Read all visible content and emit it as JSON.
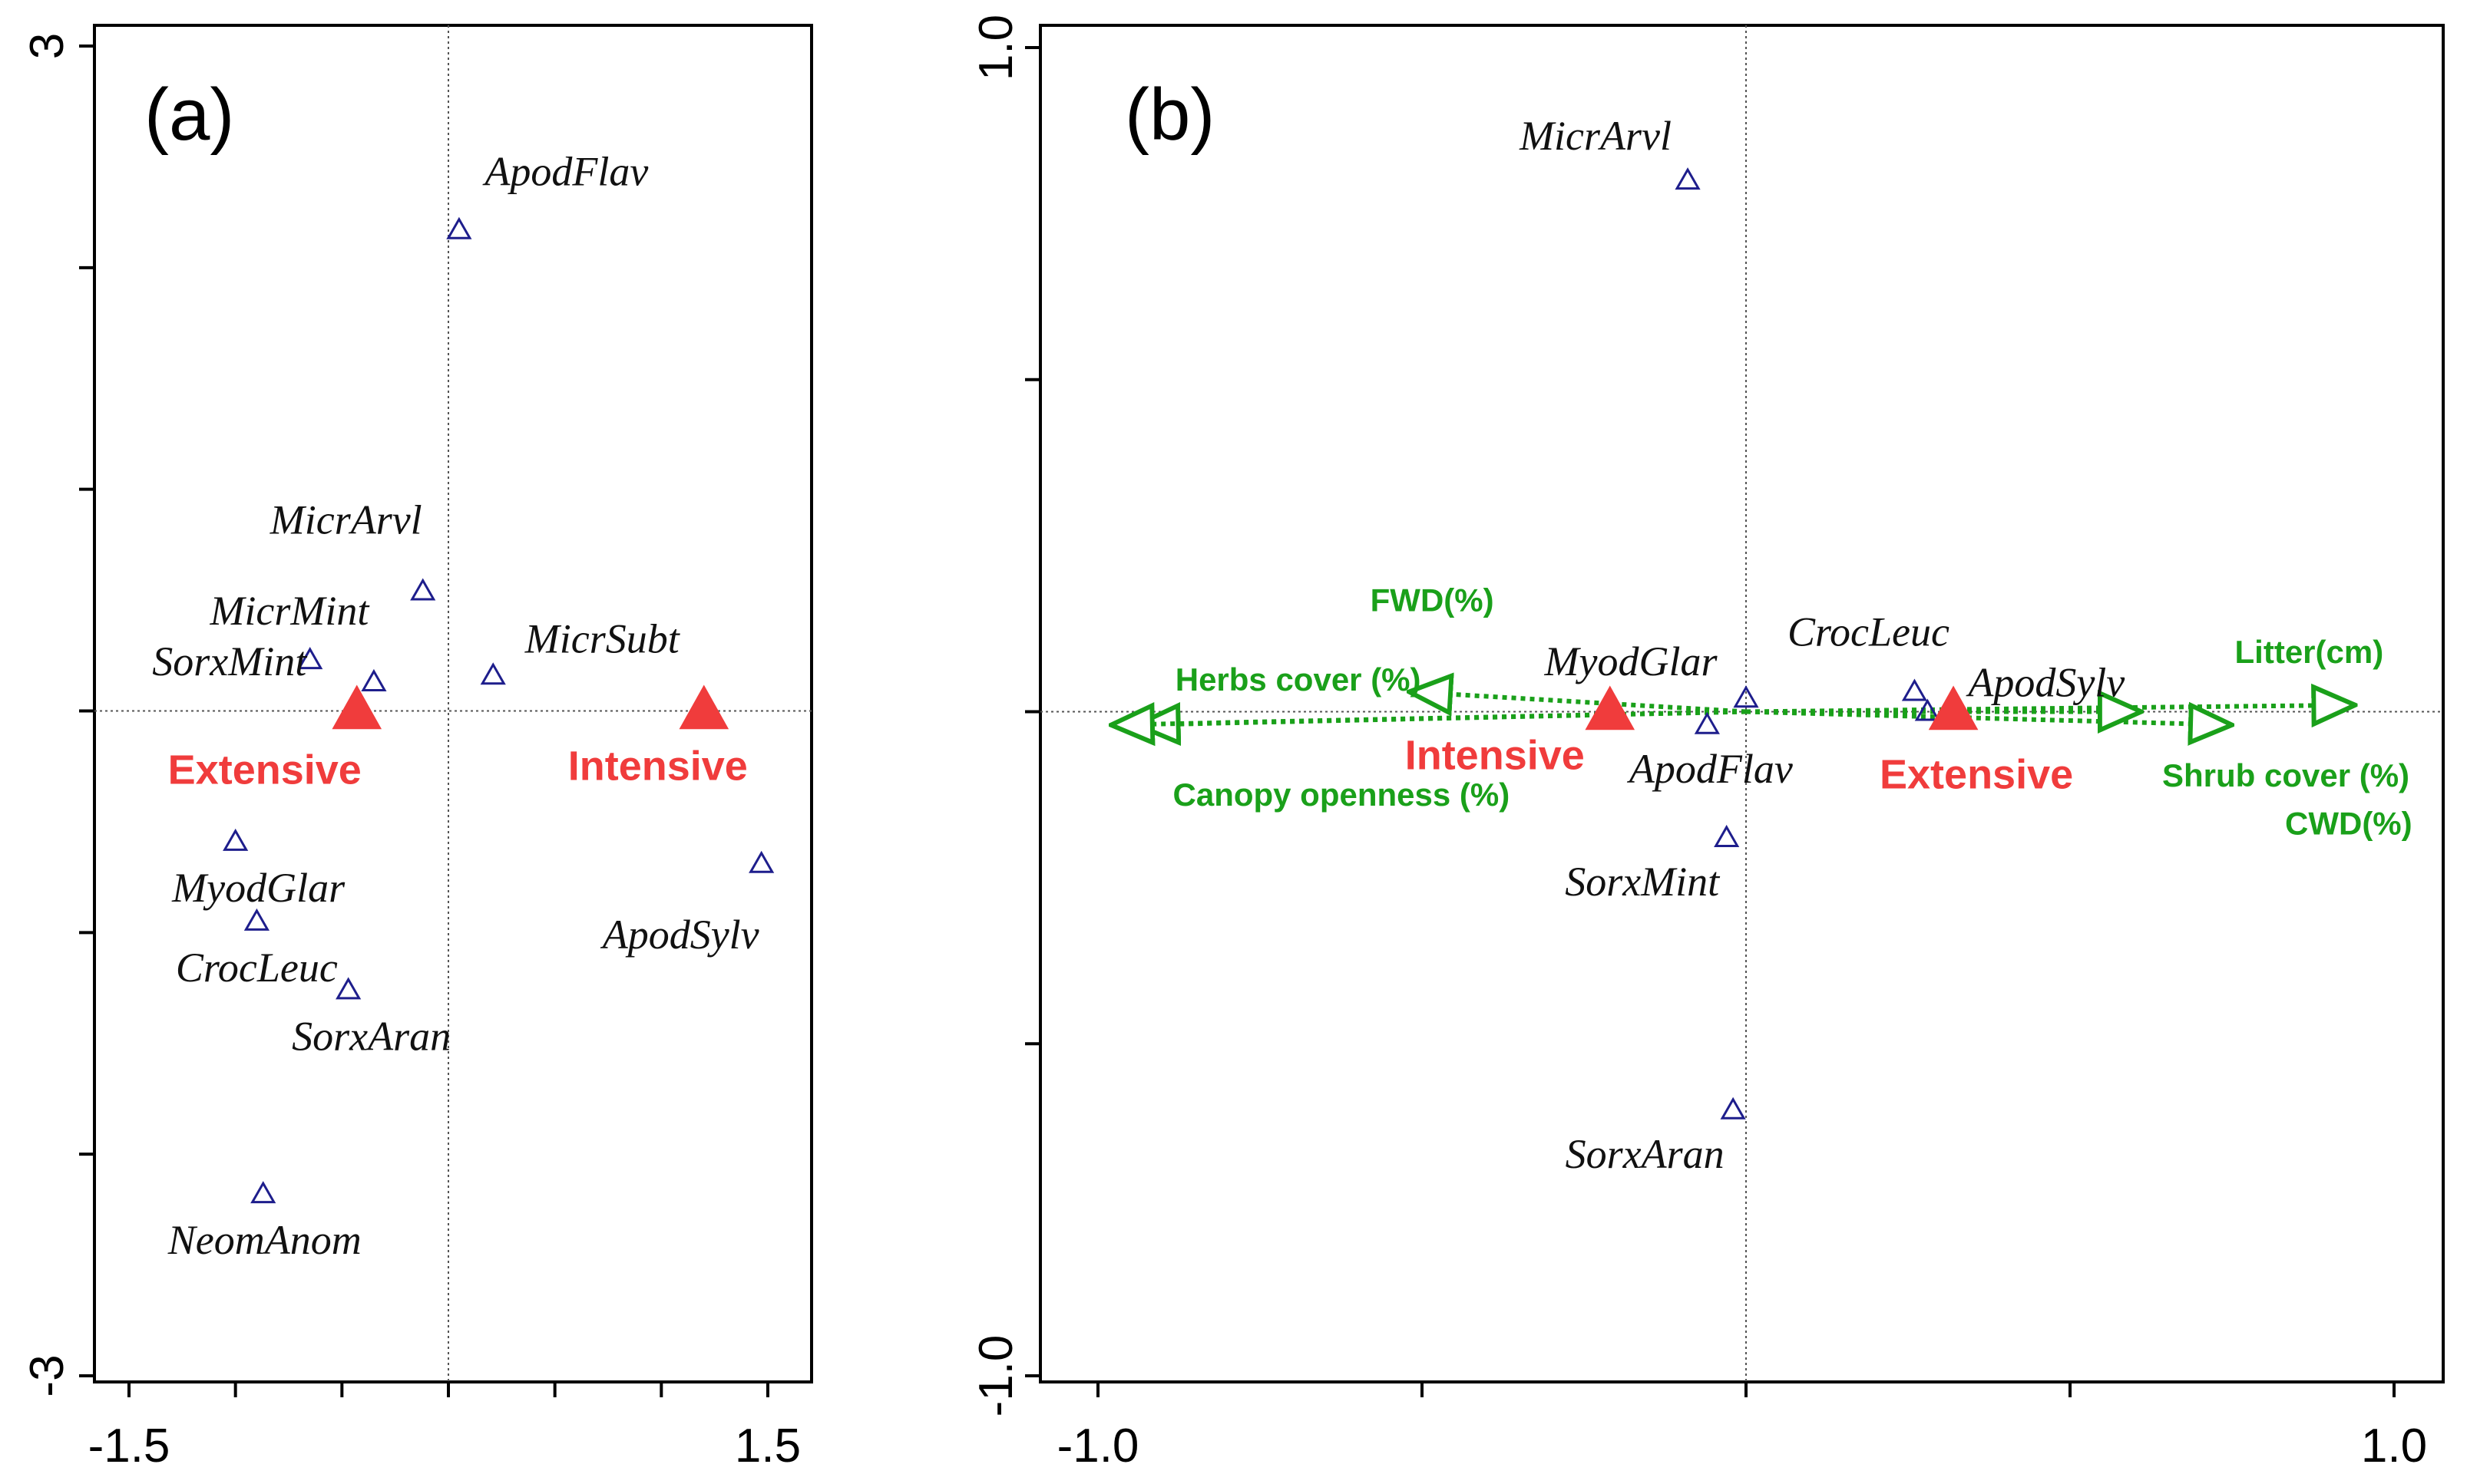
{
  "chart_data": [
    {
      "type": "scatter",
      "panel_label": "(a)",
      "xlim": [
        -1.5,
        1.5
      ],
      "ylim": [
        -3,
        3
      ],
      "x_tick_values": [
        -1.5,
        1.5
      ],
      "y_tick_values": [
        3,
        -3
      ],
      "x_tick_labels": [
        "-1.5",
        "1.5"
      ],
      "y_tick_labels": [
        "3",
        "-3"
      ],
      "x_minor_ticks": [
        -1.0,
        -0.5,
        0,
        0.5,
        1.0
      ],
      "y_minor_ticks": [
        -2,
        -1,
        0,
        1,
        2
      ],
      "marker_color": "#1e1e8c",
      "species": [
        {
          "label": "ApodFlav",
          "x": 0.05,
          "y": 2.17
        },
        {
          "label": "MicrArvl",
          "x": -0.12,
          "y": 0.54
        },
        {
          "label": "MicrMint",
          "x": -0.35,
          "y": 0.13
        },
        {
          "label": "SorxMint",
          "x": -0.65,
          "y": 0.23
        },
        {
          "label": "MicrSubt",
          "x": 0.21,
          "y": 0.16
        },
        {
          "label": "ApodSylv",
          "x": 1.47,
          "y": -0.69
        },
        {
          "label": "MyodGlar",
          "x": -1.0,
          "y": -0.59
        },
        {
          "label": "CrocLeuc",
          "x": -0.9,
          "y": -0.95
        },
        {
          "label": "SorxAran",
          "x": -0.47,
          "y": -1.26
        },
        {
          "label": "NeomAnom",
          "x": -0.87,
          "y": -2.18
        }
      ],
      "treatment_color": "#f03c3c",
      "treatments": [
        {
          "label": "Extensive",
          "x": -0.43,
          "y": 0.0
        },
        {
          "label": "Intensive",
          "x": 1.2,
          "y": 0.0
        }
      ]
    },
    {
      "type": "scatter",
      "panel_label": "(b)",
      "xlim": [
        -1.0,
        1.0
      ],
      "ylim": [
        -1.0,
        1.0
      ],
      "x_tick_values": [
        -1.0,
        1.0
      ],
      "y_tick_values": [
        1.0,
        -1.0
      ],
      "x_tick_labels": [
        "-1.0",
        "1.0"
      ],
      "y_tick_labels": [
        "1.0",
        "-1.0"
      ],
      "x_minor_ticks": [
        -0.5,
        0,
        0.5
      ],
      "y_minor_ticks": [
        -0.5,
        0,
        0.5
      ],
      "marker_color": "#1e1e8c",
      "species": [
        {
          "label": "MicrArvl",
          "x": -0.09,
          "y": 0.8
        },
        {
          "label": "MyodGlar",
          "x": 0.0,
          "y": 0.02
        },
        {
          "label": "CrocLeuc",
          "x": 0.26,
          "y": 0.03
        },
        {
          "label": "ApodSylv",
          "x": 0.28,
          "y": 0.0
        },
        {
          "label": "ApodFlav",
          "x": -0.06,
          "y": -0.02
        },
        {
          "label": "SorxMint",
          "x": -0.03,
          "y": -0.19
        },
        {
          "label": "SorxAran",
          "x": -0.02,
          "y": -0.6
        }
      ],
      "treatment_color": "#f03c3c",
      "treatments": [
        {
          "label": "Intensive",
          "x": -0.21,
          "y": 0.0
        },
        {
          "label": "Extensive",
          "x": 0.32,
          "y": 0.0
        }
      ],
      "vector_color": "#1aa01a",
      "env_vectors": [
        {
          "label": "FWD(%)",
          "x": -0.52,
          "y": 0.03
        },
        {
          "label": "Herbs cover (%)",
          "x": -0.94,
          "y": -0.02
        },
        {
          "label": "Canopy openness (%)",
          "x": -0.98,
          "y": -0.02
        },
        {
          "label": "Litter(cm)",
          "x": 0.94,
          "y": 0.01
        },
        {
          "label": "Shrub cover (%)",
          "x": 0.75,
          "y": -0.02
        },
        {
          "label": "CWD(%)",
          "x": 0.61,
          "y": 0.0
        }
      ]
    }
  ]
}
